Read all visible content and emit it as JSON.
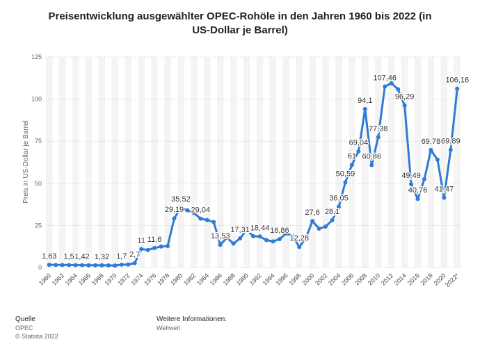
{
  "chart_data": {
    "type": "line",
    "title": "Preisentwicklung ausgewählter OPEC-Rohöle in den Jahren 1960 bis 2022 (in US-Dollar je Barrel)",
    "y_label": "Preis in US-Dollar je Barrel",
    "categories": [
      "1960",
      null,
      "1962",
      null,
      "1964",
      null,
      "1966",
      null,
      "1968",
      null,
      "1970",
      null,
      "1972",
      null,
      "1974",
      null,
      "1976",
      null,
      "1978",
      null,
      "1980",
      null,
      "1982",
      null,
      "1984",
      null,
      "1986",
      null,
      "1988",
      null,
      "1990",
      null,
      "1992",
      null,
      "1994",
      null,
      "1996",
      null,
      "1998",
      null,
      "2000",
      null,
      "2002",
      null,
      "2004",
      null,
      "2006",
      null,
      "2008",
      null,
      "2010",
      null,
      "2012",
      null,
      "2014",
      null,
      "2016",
      null,
      "2018",
      null,
      "2020",
      null,
      "2022*"
    ],
    "series": [
      {
        "name": "Preis",
        "color": "#2e7bd6",
        "values": [
          1.63,
          1.57,
          1.52,
          1.5,
          1.45,
          1.42,
          1.36,
          1.33,
          1.32,
          1.29,
          1.21,
          1.7,
          1.82,
          2.7,
          11,
          10.43,
          11.6,
          12.5,
          12.79,
          29.19,
          35.52,
          34,
          32.38,
          29.04,
          28.2,
          27.01,
          13.53,
          17.73,
          14.24,
          17.31,
          22.26,
          18.62,
          18.44,
          16.33,
          15.53,
          16.86,
          20.29,
          18.68,
          12.28,
          17.48,
          27.6,
          23.12,
          24.36,
          28.1,
          36.05,
          50.59,
          61,
          69.04,
          94.1,
          60.86,
          77.38,
          107.46,
          109.45,
          105.87,
          96.29,
          49.49,
          40.76,
          52.43,
          69.78,
          64.04,
          41.47,
          69.89,
          106.16
        ],
        "value_labels": [
          "1,63",
          null,
          null,
          "1,5",
          null,
          "1,42",
          null,
          null,
          "1,32",
          null,
          null,
          "1,7",
          null,
          "2,7",
          "11",
          null,
          "11,6",
          null,
          null,
          "29,19",
          "35,52",
          null,
          null,
          "29,04",
          null,
          null,
          "13,53",
          null,
          null,
          "17,31",
          null,
          null,
          "18,44",
          null,
          null,
          "16,86",
          null,
          null,
          "12,28",
          null,
          "27,6",
          null,
          null,
          "28,1",
          "36,05",
          "50,59",
          "61",
          "69,04",
          "94,1",
          "60,86",
          "77,38",
          "107,46",
          null,
          null,
          "96,29",
          "49,49",
          "40,76",
          null,
          "69,78",
          null,
          "41,47",
          "69,89",
          "106,16"
        ]
      }
    ],
    "ylim": [
      0,
      125
    ],
    "yticks": [
      0,
      25,
      50,
      75,
      100,
      125
    ],
    "grid": true
  },
  "footer": {
    "source_heading": "Quelle",
    "source": "OPEC",
    "copyright": "© Statista 2022",
    "info_heading": "Weitere Informationen:",
    "info": "Weltweit"
  }
}
